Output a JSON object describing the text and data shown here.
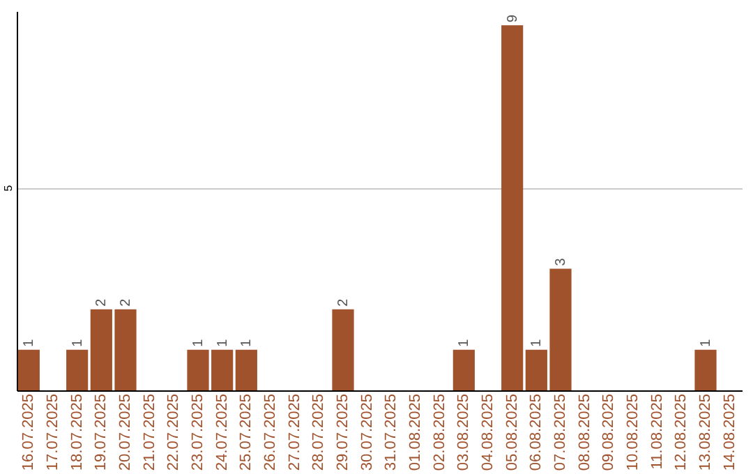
{
  "chart_data": {
    "type": "bar",
    "categories": [
      "16.07.2025",
      "17.07.2025",
      "18.07.2025",
      "19.07.2025",
      "20.07.2025",
      "21.07.2025",
      "22.07.2025",
      "23.07.2025",
      "24.07.2025",
      "25.07.2025",
      "26.07.2025",
      "27.07.2025",
      "28.07.2025",
      "29.07.2025",
      "30.07.2025",
      "31.07.2025",
      "01.08.2025",
      "02.08.2025",
      "03.08.2025",
      "04.08.2025",
      "05.08.2025",
      "06.08.2025",
      "07.08.2025",
      "08.08.2025",
      "09.08.2025",
      "10.08.2025",
      "11.08.2025",
      "12.08.2025",
      "13.08.2025",
      "14.08.2025"
    ],
    "values": [
      1,
      null,
      1,
      2,
      2,
      null,
      null,
      1,
      1,
      1,
      null,
      null,
      null,
      2,
      null,
      null,
      null,
      null,
      1,
      null,
      9,
      1,
      3,
      null,
      null,
      null,
      null,
      null,
      1,
      null
    ],
    "color": "#a0522d",
    "ylim": [
      0,
      9.35
    ],
    "yticks": [
      5
    ],
    "grid": "y",
    "data_labels": true
  }
}
